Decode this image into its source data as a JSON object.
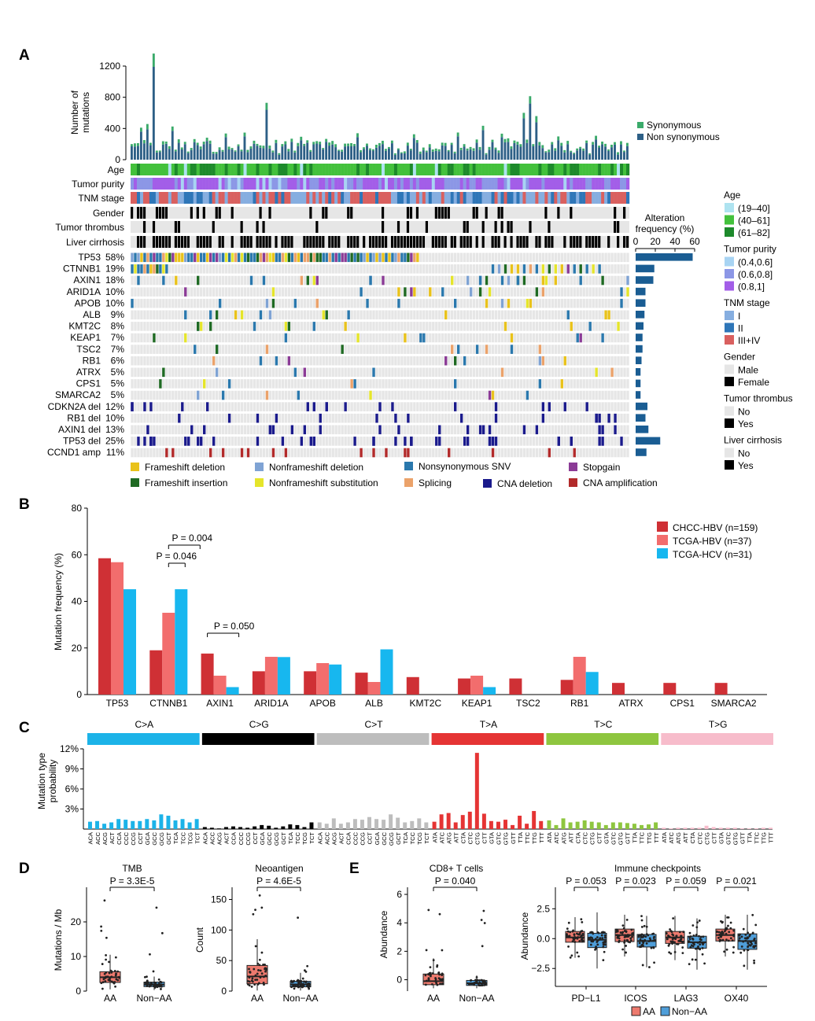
{
  "panels": {
    "A": "A",
    "B": "B",
    "C": "C",
    "D": "D",
    "E": "E"
  },
  "colors": {
    "synonymous": "#3aaa6a",
    "nonsyn": "#2d5f86",
    "age1": "#aee3f0",
    "age2": "#43c13c",
    "age3": "#1d8a2b",
    "pur1": "#a8d4f3",
    "pur2": "#8c97e6",
    "pur3": "#a35ee8",
    "tnm1": "#86aee0",
    "tnm2": "#2e76b8",
    "tnm3": "#d9605f",
    "frameshift_deletion": "#e9c21a",
    "frameshift_insertion": "#1f6a23",
    "nonframeshift_deletion": "#7fa3d4",
    "nonframeshift_substitution": "#e5e52a",
    "nonsynonymous_snv": "#2a78ad",
    "splicing": "#eba26a",
    "cna_deletion": "#1a1a8c",
    "stopgain": "#8b3b96",
    "cna_amplification": "#b22a2a",
    "bg": "#e6e6e6",
    "chcc": "#cf3035",
    "tcga_hbv": "#f26d6d",
    "tcga_hcv": "#17b7ef",
    "ca": "#1cb3e8",
    "cg": "#000000",
    "ct": "#bdbdbd",
    "ta": "#e53434",
    "tc": "#8ec63f",
    "tg": "#f7bccb",
    "aa": "#ed7a6e",
    "nonaa": "#4f9ed9"
  },
  "panelA": {
    "ylabel": [
      "Number of",
      "mutations"
    ],
    "yticks": [
      "0",
      "400",
      "800",
      "1200"
    ],
    "legend_synonymous": "Synonymous",
    "legend_nonsyn": "Non synonymous",
    "clinical_tracks": [
      "Age",
      "Tumor purity",
      "TNM stage",
      "Gender",
      "Tumor thrombus",
      "Liver cirrhosis"
    ],
    "alteration_title": [
      "Alteration",
      "frequency (%)"
    ],
    "alteration_ticks": [
      "0",
      "20",
      "40",
      "60"
    ],
    "genes": [
      {
        "name": "TP53",
        "pct": "58%",
        "v": 58
      },
      {
        "name": "CTNNB1",
        "pct": "19%",
        "v": 19
      },
      {
        "name": "AXIN1",
        "pct": "18%",
        "v": 18
      },
      {
        "name": "ARID1A",
        "pct": "10%",
        "v": 10
      },
      {
        "name": "APOB",
        "pct": "10%",
        "v": 10
      },
      {
        "name": "ALB",
        "pct": "9%",
        "v": 9
      },
      {
        "name": "KMT2C",
        "pct": "8%",
        "v": 8
      },
      {
        "name": "KEAP1",
        "pct": "7%",
        "v": 7
      },
      {
        "name": "TSC2",
        "pct": "7%",
        "v": 7
      },
      {
        "name": "RB1",
        "pct": "6%",
        "v": 6
      },
      {
        "name": "ATRX",
        "pct": "5%",
        "v": 5
      },
      {
        "name": "CPS1",
        "pct": "5%",
        "v": 5
      },
      {
        "name": "SMARCA2",
        "pct": "5%",
        "v": 5
      },
      {
        "name": "CDKN2A del",
        "pct": "12%",
        "v": 12
      },
      {
        "name": "RB1 del",
        "pct": "10%",
        "v": 10
      },
      {
        "name": "AXIN1 del",
        "pct": "13%",
        "v": 13
      },
      {
        "name": "TP53 del",
        "pct": "25%",
        "v": 25
      },
      {
        "name": "CCND1 amp",
        "pct": "11%",
        "v": 11
      }
    ],
    "right_legend": [
      {
        "title": "Age",
        "items": [
          {
            "label": "(19–40]",
            "c": "#aee3f0"
          },
          {
            "label": "(40–61]",
            "c": "#43c13c"
          },
          {
            "label": "(61–82]",
            "c": "#1d8a2b"
          }
        ]
      },
      {
        "title": "Tumor purity",
        "items": [
          {
            "label": "(0.4,0.6]",
            "c": "#a8d4f3"
          },
          {
            "label": "(0.6,0.8]",
            "c": "#8c97e6"
          },
          {
            "label": "(0.8,1]",
            "c": "#a35ee8"
          }
        ]
      },
      {
        "title": "TNM stage",
        "items": [
          {
            "label": "I",
            "c": "#86aee0"
          },
          {
            "label": "II",
            "c": "#2e76b8"
          },
          {
            "label": "III+IV",
            "c": "#d9605f"
          }
        ]
      },
      {
        "title": "Gender",
        "items": [
          {
            "label": "Male",
            "c": "#e6e6e6"
          },
          {
            "label": "Female",
            "c": "#000000"
          }
        ]
      },
      {
        "title": "Tumor thrombus",
        "items": [
          {
            "label": "No",
            "c": "#e6e6e6"
          },
          {
            "label": "Yes",
            "c": "#000000"
          }
        ]
      },
      {
        "title": "Liver cirrhosis",
        "items": [
          {
            "label": "No",
            "c": "#e6e6e6"
          },
          {
            "label": "Yes",
            "c": "#000000"
          }
        ]
      }
    ],
    "bottom_legend": [
      {
        "label": "Frameshift deletion",
        "c": "#e9c21a"
      },
      {
        "label": "Nonframeshift deletion",
        "c": "#7fa3d4"
      },
      {
        "label": "Nonsynonymous SNV",
        "c": "#2a78ad"
      },
      {
        "label": "Stopgain",
        "c": "#8b3b96"
      },
      {
        "label": "Frameshift insertion",
        "c": "#1f6a23"
      },
      {
        "label": "Nonframeshift substitution",
        "c": "#e5e52a"
      },
      {
        "label": "Splicing",
        "c": "#eba26a"
      },
      {
        "label": "CNA deletion",
        "c": "#1a1a8c"
      },
      {
        "label": "CNA amplification",
        "c": "#b22a2a"
      }
    ]
  },
  "chart_data": [
    {
      "type": "bar",
      "panel": "B",
      "ylabel": "Mutation frequency (%)",
      "ylim": [
        0,
        80
      ],
      "yticks": [
        "0",
        "20",
        "40",
        "60",
        "80"
      ],
      "categories": [
        "TP53",
        "CTNNB1",
        "AXIN1",
        "ARID1A",
        "APOB",
        "ALB",
        "KMT2C",
        "KEAP1",
        "TSC2",
        "RB1",
        "ATRX",
        "CPS1",
        "SMARCA2"
      ],
      "series": [
        {
          "name": "CHCC-HBV (n=159)",
          "values": [
            58.5,
            19,
            17.6,
            10,
            10,
            9.4,
            7.5,
            6.9,
            6.9,
            6.3,
            5,
            5,
            5
          ]
        },
        {
          "name": "TCGA-HBV (n=37)",
          "values": [
            56.8,
            35.1,
            8.1,
            16.2,
            13.5,
            5.4,
            0,
            8.1,
            0,
            16.2,
            0,
            0,
            0
          ]
        },
        {
          "name": "TCGA-HCV (n=31)",
          "values": [
            45.2,
            45.2,
            3.2,
            16.1,
            12.9,
            19.4,
            0,
            3.2,
            0,
            9.7,
            0,
            0,
            0
          ]
        }
      ],
      "annotations": [
        "P = 0.004",
        "P = 0.046",
        "P = 0.050"
      ],
      "legend": "top-right"
    },
    {
      "type": "bar",
      "panel": "C",
      "ylabel": [
        "Mutation type",
        "probability"
      ],
      "ylim": [
        0,
        12
      ],
      "yticks": [
        "3%",
        "6%",
        "9%",
        "12%"
      ],
      "groups": [
        "C>A",
        "C>G",
        "C>T",
        "T>A",
        "T>C",
        "T>G"
      ],
      "contexts_C": [
        "ACA",
        "ACC",
        "ACG",
        "ACT",
        "CCA",
        "CCC",
        "CCG",
        "CCT",
        "GCA",
        "GCC",
        "GCG",
        "GCT",
        "TCA",
        "TCC",
        "TCG",
        "TCT"
      ],
      "contexts_T": [
        "ATA",
        "ATC",
        "ATG",
        "ATT",
        "CTA",
        "CTC",
        "CTG",
        "CTT",
        "GTA",
        "GTC",
        "GTG",
        "GTT",
        "TTA",
        "TTC",
        "TTG",
        "TTT"
      ],
      "values": [
        [
          1.1,
          1.2,
          0.8,
          1.0,
          1.5,
          1.4,
          1.2,
          1.2,
          1.5,
          1.3,
          2.2,
          2.0,
          1.3,
          1.5,
          1.0,
          1.5
        ],
        [
          0.3,
          0.2,
          0.1,
          0.3,
          0.4,
          0.3,
          0.2,
          0.4,
          0.6,
          0.5,
          0.2,
          0.4,
          0.7,
          0.6,
          0.3,
          1.0
        ],
        [
          1.0,
          0.8,
          1.6,
          0.8,
          1.0,
          1.5,
          1.4,
          1.8,
          1.5,
          1.4,
          2.2,
          1.7,
          1.0,
          1.2,
          1.6,
          1.0
        ],
        [
          1.1,
          2.2,
          2.4,
          1.0,
          2.1,
          2.6,
          11.4,
          2.3,
          1.2,
          1.1,
          1.4,
          0.6,
          2.0,
          0.8,
          2.7,
          1.2
        ],
        [
          1.3,
          0.6,
          1.6,
          1.0,
          1.1,
          1.3,
          1.1,
          1.0,
          0.6,
          1.0,
          1.0,
          0.9,
          0.8,
          0.6,
          0.7,
          1.0
        ],
        [
          0.2,
          0.1,
          0.2,
          0.2,
          0.2,
          0.2,
          0.5,
          0.3,
          0.2,
          0.2,
          0.2,
          0.1,
          0.1,
          0.1,
          0.2,
          0.2
        ]
      ]
    },
    {
      "type": "box",
      "panel": "D",
      "title": "TMB",
      "pvalue": "P = 3.3E-5",
      "ylabel": "Mutations / Mb",
      "ylim": [
        0,
        30
      ],
      "yticks": [
        "0",
        "10",
        "20"
      ],
      "categories": [
        "AA",
        "Non−AA"
      ],
      "boxes": [
        {
          "q1": 2.5,
          "median": 4.0,
          "q3": 5.6,
          "lo": 0.5,
          "hi": 10.5
        },
        {
          "q1": 1.3,
          "median": 1.9,
          "q3": 2.6,
          "lo": 0.3,
          "hi": 4.2
        }
      ]
    },
    {
      "type": "box",
      "panel": "D",
      "title": "Neoantigen",
      "pvalue": "P = 4.6E-5",
      "ylabel": "Count",
      "ylim": [
        0,
        170
      ],
      "yticks": [
        "0",
        "50",
        "100",
        "150"
      ],
      "categories": [
        "AA",
        "Non−AA"
      ],
      "boxes": [
        {
          "q1": 12,
          "median": 24,
          "q3": 42,
          "lo": 1,
          "hi": 85
        },
        {
          "q1": 7,
          "median": 11,
          "q3": 16,
          "lo": 1,
          "hi": 30
        }
      ]
    },
    {
      "type": "box",
      "panel": "E",
      "title": "CD8+ T cells",
      "pvalue": "P = 0.040",
      "ylabel": "Abundance",
      "ylim": [
        -0.8,
        6.5
      ],
      "yticks": [
        "0",
        "2",
        "4",
        "6"
      ],
      "categories": [
        "AA",
        "Non−AA"
      ],
      "boxes": [
        {
          "q1": -0.35,
          "median": -0.1,
          "q3": 0.4,
          "lo": -0.6,
          "hi": 1.5
        },
        {
          "q1": -0.4,
          "median": -0.25,
          "q3": -0.05,
          "lo": -0.6,
          "hi": 0.3
        }
      ]
    },
    {
      "type": "box",
      "panel": "E",
      "title": "Immune checkpoints",
      "ylabel": "Abundance",
      "ylim": [
        -4,
        4.3
      ],
      "yticks": [
        "−2.5",
        "0.0",
        "2.5"
      ],
      "categories": [
        "PD−L1",
        "ICOS",
        "LAG3",
        "OX40"
      ],
      "pvalues": [
        "P = 0.053",
        "P = 0.023",
        "P = 0.059",
        "P = 0.021"
      ],
      "series": [
        {
          "name": "AA",
          "boxes": [
            {
              "q1": -0.3,
              "median": 0.1,
              "q3": 0.6,
              "lo": -1.6,
              "hi": 1.8
            },
            {
              "q1": -0.25,
              "median": 0.3,
              "q3": 0.8,
              "lo": -1.5,
              "hi": 2.0
            },
            {
              "q1": -0.4,
              "median": 0.1,
              "q3": 0.6,
              "lo": -1.8,
              "hi": 1.9
            },
            {
              "q1": -0.2,
              "median": 0.3,
              "q3": 0.8,
              "lo": -1.5,
              "hi": 2.0
            }
          ]
        },
        {
          "name": "Non−AA",
          "boxes": [
            {
              "q1": -0.75,
              "median": -0.1,
              "q3": 0.45,
              "lo": -2.5,
              "hi": 2.2
            },
            {
              "q1": -0.7,
              "median": -0.2,
              "q3": 0.35,
              "lo": -2.4,
              "hi": 1.9
            },
            {
              "q1": -0.8,
              "median": -0.3,
              "q3": 0.2,
              "lo": -2.6,
              "hi": 1.7
            },
            {
              "q1": -0.9,
              "median": -0.2,
              "q3": 0.4,
              "lo": -2.6,
              "hi": 2.0
            }
          ]
        }
      ],
      "legend": [
        "AA",
        "Non−AA"
      ]
    }
  ]
}
